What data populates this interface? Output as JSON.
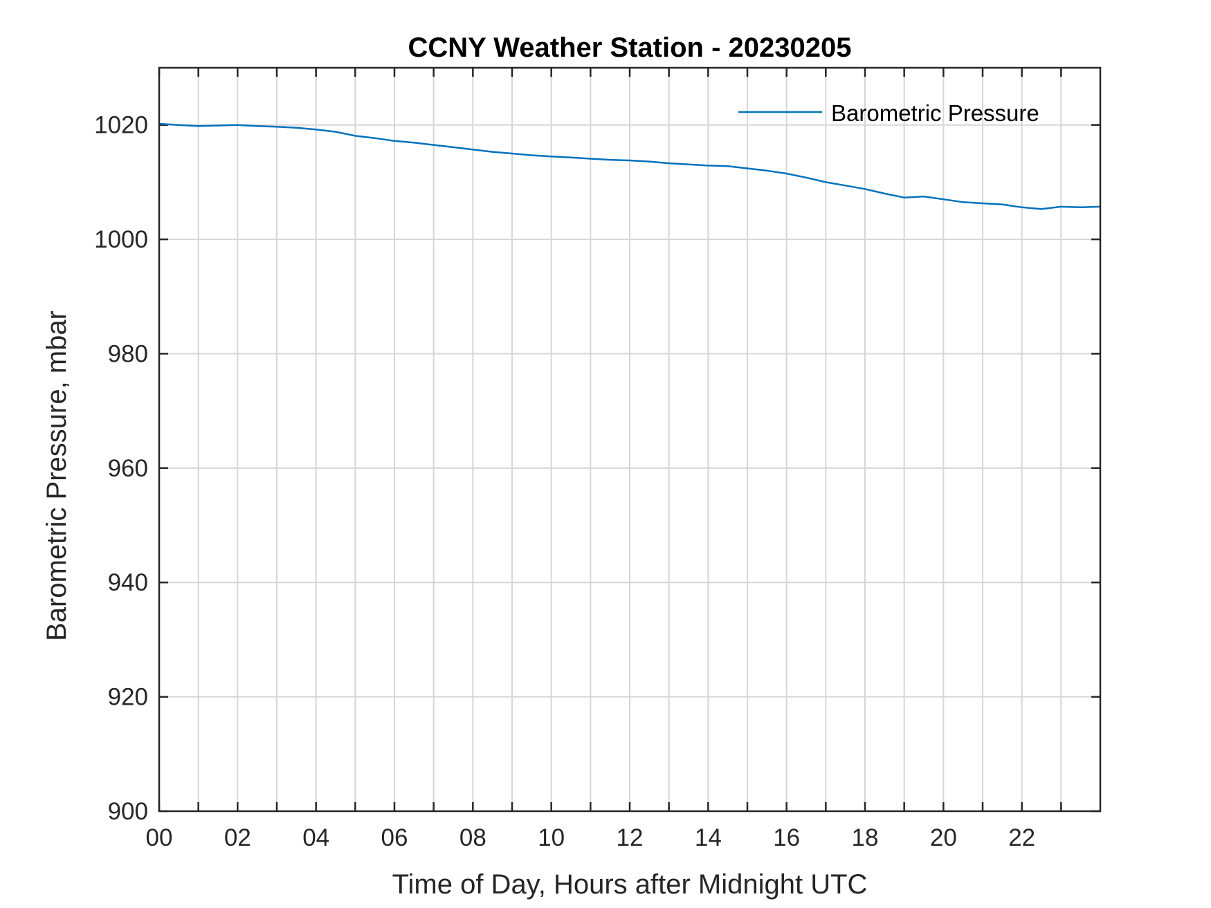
{
  "chart_data": {
    "type": "line",
    "title": "CCNY Weather Station - 20230205",
    "xlabel": "Time of Day, Hours after Midnight UTC",
    "ylabel": "Barometric Pressure, mbar",
    "xlim": [
      0,
      24
    ],
    "ylim": [
      900,
      1030
    ],
    "x_tick_values": [
      0,
      2,
      4,
      6,
      8,
      10,
      12,
      14,
      16,
      18,
      20,
      22
    ],
    "x_tick_labels": [
      "00",
      "02",
      "04",
      "06",
      "08",
      "10",
      "12",
      "14",
      "16",
      "18",
      "20",
      "22"
    ],
    "y_tick_values": [
      900,
      920,
      940,
      960,
      980,
      1000,
      1020
    ],
    "y_tick_labels": [
      "900",
      "920",
      "940",
      "960",
      "980",
      "1000",
      "1020"
    ],
    "x_grid_values": [
      0,
      1,
      2,
      3,
      4,
      5,
      6,
      7,
      8,
      9,
      10,
      11,
      12,
      13,
      14,
      15,
      16,
      17,
      18,
      19,
      20,
      21,
      22,
      23
    ],
    "grid": true,
    "legend_position": "top-right",
    "series": [
      {
        "name": "Barometric Pressure",
        "color": "#0072BD",
        "x": [
          0,
          0.5,
          1,
          1.5,
          2,
          2.5,
          3,
          3.5,
          4,
          4.5,
          5,
          5.5,
          6,
          6.5,
          7,
          7.5,
          8,
          8.5,
          9,
          9.5,
          10,
          10.5,
          11,
          11.5,
          12,
          12.5,
          13,
          13.5,
          14,
          14.5,
          15,
          15.5,
          16,
          16.5,
          17,
          17.5,
          18,
          18.5,
          19,
          19.5,
          20,
          20.5,
          21,
          21.5,
          22,
          22.5,
          23,
          23.5,
          24
        ],
        "values": [
          1020.2,
          1020.0,
          1019.8,
          1019.9,
          1020.0,
          1019.8,
          1019.7,
          1019.5,
          1019.2,
          1018.8,
          1018.1,
          1017.7,
          1017.2,
          1016.9,
          1016.5,
          1016.1,
          1015.7,
          1015.3,
          1015.0,
          1014.7,
          1014.5,
          1014.3,
          1014.1,
          1013.9,
          1013.8,
          1013.6,
          1013.3,
          1013.1,
          1012.9,
          1012.8,
          1012.4,
          1012.0,
          1011.5,
          1010.8,
          1010.0,
          1009.4,
          1008.8,
          1008.0,
          1007.3,
          1007.5,
          1007.0,
          1006.5,
          1006.3,
          1006.1,
          1005.6,
          1005.3,
          1005.7,
          1005.6,
          1005.7
        ]
      }
    ]
  }
}
